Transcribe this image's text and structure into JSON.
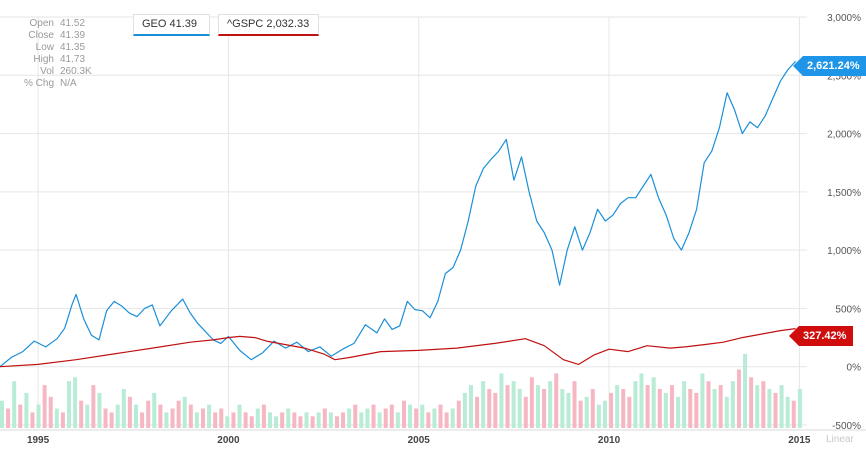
{
  "ohlc": [
    {
      "label": "Open",
      "value": "41.52"
    },
    {
      "label": "Close",
      "value": "41.39"
    },
    {
      "label": "Low",
      "value": "41.35"
    },
    {
      "label": "High",
      "value": "41.73"
    },
    {
      "label": "Vol",
      "value": "260.3K"
    },
    {
      "label": "% Chg",
      "value": "N/A"
    }
  ],
  "legend": {
    "geo": "GEO 41.39",
    "spx": "^GSPC 2,032.33"
  },
  "tags": {
    "geo": "2,621.24%",
    "spx": "327.42%"
  },
  "scale_mode": "Linear",
  "colors": {
    "geo": "#1a8fd8",
    "spx": "#c01010",
    "vol_up": "#b8ecd6",
    "vol_down": "#f6b7c3",
    "grid": "#e6e6e6"
  },
  "chart_data": {
    "type": "line",
    "y_unit": "% change",
    "ylim": [
      -500,
      3000
    ],
    "y_ticks": [
      -500,
      0,
      500,
      1000,
      1500,
      2000,
      2500,
      3000
    ],
    "y_tick_labels": [
      "-500%",
      "0%",
      "500%",
      "1,000%",
      "1,500%",
      "2,000%",
      "2,500%",
      "3,000%"
    ],
    "xlim": [
      1994.0,
      2015.2
    ],
    "x_ticks": [
      1995,
      2000,
      2005,
      2010,
      2015
    ],
    "x_tick_labels": [
      "1995",
      "2000",
      "2005",
      "2010",
      "2015"
    ],
    "grid": true,
    "series": [
      {
        "name": "GEO",
        "x": [
          1994.0,
          1994.3,
          1994.6,
          1994.9,
          1995.2,
          1995.5,
          1995.7,
          1995.9,
          1996.0,
          1996.2,
          1996.4,
          1996.6,
          1996.8,
          1997.0,
          1997.2,
          1997.4,
          1997.6,
          1997.8,
          1998.0,
          1998.2,
          1998.5,
          1998.8,
          1999.0,
          1999.2,
          1999.4,
          1999.6,
          1999.8,
          2000.0,
          2000.3,
          2000.6,
          2000.9,
          2001.2,
          2001.5,
          2001.8,
          2002.1,
          2002.4,
          2002.7,
          2003.0,
          2003.3,
          2003.6,
          2003.9,
          2004.1,
          2004.3,
          2004.5,
          2004.7,
          2004.9,
          2005.1,
          2005.3,
          2005.5,
          2005.7,
          2005.9,
          2006.1,
          2006.3,
          2006.5,
          2006.7,
          2006.9,
          2007.1,
          2007.3,
          2007.5,
          2007.7,
          2007.9,
          2008.1,
          2008.3,
          2008.5,
          2008.7,
          2008.9,
          2009.1,
          2009.3,
          2009.5,
          2009.7,
          2009.9,
          2010.1,
          2010.3,
          2010.5,
          2010.7,
          2010.9,
          2011.1,
          2011.3,
          2011.5,
          2011.7,
          2011.9,
          2012.1,
          2012.3,
          2012.5,
          2012.7,
          2012.9,
          2013.1,
          2013.3,
          2013.5,
          2013.7,
          2013.9,
          2014.1,
          2014.3,
          2014.5,
          2014.7,
          2014.9
        ],
        "values": [
          0,
          80,
          130,
          220,
          170,
          240,
          330,
          540,
          620,
          410,
          270,
          230,
          480,
          560,
          520,
          460,
          430,
          500,
          530,
          350,
          480,
          580,
          460,
          370,
          300,
          230,
          200,
          260,
          140,
          60,
          120,
          220,
          160,
          210,
          130,
          170,
          90,
          150,
          200,
          360,
          290,
          410,
          320,
          350,
          560,
          490,
          480,
          420,
          560,
          800,
          850,
          1000,
          1250,
          1550,
          1700,
          1780,
          1850,
          1950,
          1600,
          1800,
          1500,
          1250,
          1150,
          1000,
          700,
          1000,
          1200,
          1000,
          1150,
          1350,
          1250,
          1300,
          1400,
          1450,
          1450,
          1550,
          1650,
          1450,
          1300,
          1100,
          1000,
          1150,
          1350,
          1750,
          1850,
          2050,
          2350,
          2200,
          2000,
          2100,
          2050,
          2150,
          2300,
          2450,
          2550,
          2620
        ]
      },
      {
        "name": "^GSPC",
        "x": [
          1994.0,
          1995.0,
          1996.0,
          1997.0,
          1998.0,
          1999.0,
          1999.6,
          2000.0,
          2000.3,
          2000.7,
          2001.0,
          2001.5,
          2002.0,
          2002.5,
          2002.8,
          2003.2,
          2004.0,
          2005.0,
          2006.0,
          2007.0,
          2007.8,
          2008.3,
          2008.8,
          2009.2,
          2009.6,
          2010.0,
          2010.5,
          2011.0,
          2011.6,
          2012.0,
          2012.5,
          2013.0,
          2013.5,
          2014.0,
          2014.5,
          2014.9
        ],
        "values": [
          0,
          20,
          60,
          110,
          160,
          210,
          230,
          250,
          260,
          250,
          220,
          190,
          160,
          110,
          60,
          80,
          130,
          140,
          160,
          200,
          240,
          180,
          60,
          20,
          100,
          150,
          130,
          180,
          160,
          170,
          190,
          210,
          250,
          280,
          310,
          327
        ]
      }
    ],
    "volume": {
      "x_start": 1994.0,
      "x_step": 0.16,
      "values": [
        0.35,
        0.25,
        0.6,
        0.3,
        0.45,
        0.2,
        0.3,
        0.55,
        0.4,
        0.25,
        0.2,
        0.6,
        0.65,
        0.35,
        0.3,
        0.55,
        0.45,
        0.25,
        0.2,
        0.3,
        0.5,
        0.4,
        0.3,
        0.2,
        0.35,
        0.45,
        0.3,
        0.2,
        0.25,
        0.35,
        0.4,
        0.3,
        0.2,
        0.25,
        0.3,
        0.2,
        0.25,
        0.15,
        0.2,
        0.3,
        0.2,
        0.15,
        0.25,
        0.3,
        0.2,
        0.15,
        0.2,
        0.25,
        0.2,
        0.15,
        0.2,
        0.15,
        0.2,
        0.25,
        0.2,
        0.15,
        0.2,
        0.25,
        0.3,
        0.2,
        0.25,
        0.3,
        0.2,
        0.25,
        0.3,
        0.2,
        0.35,
        0.3,
        0.25,
        0.3,
        0.2,
        0.25,
        0.3,
        0.2,
        0.25,
        0.35,
        0.45,
        0.55,
        0.4,
        0.6,
        0.5,
        0.45,
        0.7,
        0.55,
        0.6,
        0.5,
        0.4,
        0.65,
        0.55,
        0.5,
        0.6,
        0.7,
        0.5,
        0.45,
        0.6,
        0.35,
        0.4,
        0.5,
        0.3,
        0.35,
        0.45,
        0.55,
        0.5,
        0.4,
        0.6,
        0.7,
        0.55,
        0.65,
        0.5,
        0.45,
        0.55,
        0.4,
        0.6,
        0.5,
        0.45,
        0.7,
        0.6,
        0.5,
        0.55,
        0.4,
        0.6,
        0.75,
        0.95,
        0.65,
        0.55,
        0.6,
        0.5,
        0.45,
        0.55,
        0.4,
        0.35,
        0.5
      ],
      "direction": [
        1,
        0,
        1,
        0,
        1,
        0,
        1,
        0,
        0,
        1,
        0,
        1,
        1,
        0,
        1,
        0,
        1,
        0,
        0,
        1,
        1,
        0,
        1,
        0,
        0,
        1,
        0,
        1,
        0,
        0,
        1,
        0,
        1,
        0,
        1,
        0,
        0,
        1,
        0,
        1,
        0,
        0,
        1,
        0,
        1,
        1,
        0,
        1,
        0,
        0,
        1,
        0,
        1,
        0,
        1,
        0,
        0,
        1,
        0,
        1,
        1,
        0,
        1,
        0,
        0,
        1,
        0,
        1,
        0,
        1,
        0,
        1,
        0,
        0,
        1,
        0,
        1,
        1,
        0,
        1,
        0,
        0,
        1,
        0,
        1,
        1,
        0,
        0,
        1,
        0,
        1,
        0,
        1,
        1,
        0,
        0,
        1,
        0,
        1,
        1,
        0,
        1,
        0,
        0,
        1,
        1,
        0,
        1,
        0,
        1,
        0,
        1,
        1,
        0,
        0,
        1,
        0,
        1,
        0,
        1,
        1,
        0,
        1,
        0,
        1,
        0,
        1,
        0,
        1,
        1,
        0,
        1
      ]
    }
  }
}
